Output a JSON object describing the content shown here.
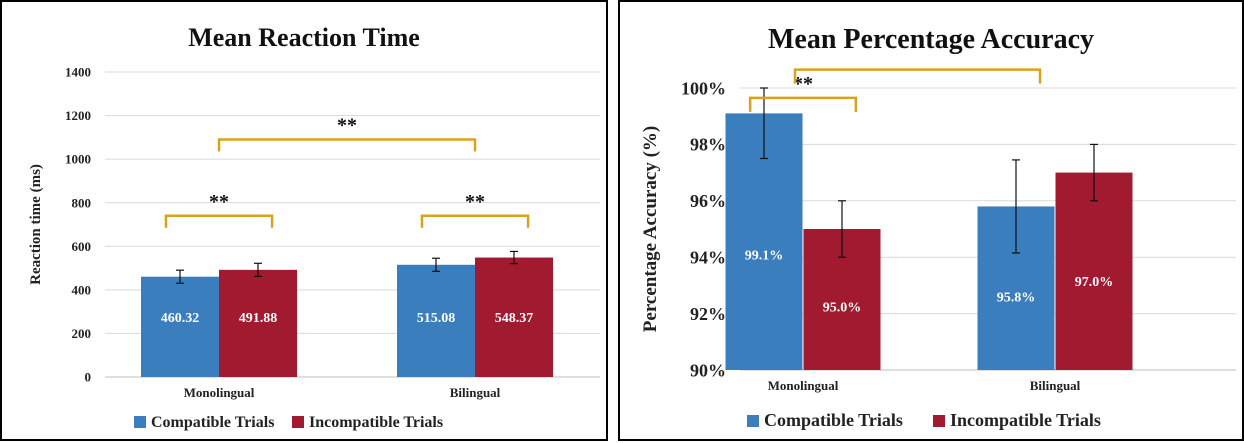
{
  "colors": {
    "compatible": "#3A7EBD",
    "incompatible": "#A11A2F",
    "bracket": "#D9A21B",
    "grid": "#D9D9D9",
    "errorbar": "#111111"
  },
  "chart_data": [
    {
      "type": "bar",
      "title": "Mean Reaction Time",
      "ylabel": "Reaction time (ms)",
      "xlabel": "",
      "categories": [
        "Monolingual",
        "Bilingual"
      ],
      "ylim": [
        0,
        1400
      ],
      "yticks": [
        0,
        200,
        400,
        600,
        800,
        1000,
        1200,
        1400
      ],
      "ytick_labels": [
        "0",
        "200",
        "400",
        "600",
        "800",
        "1000",
        "1200",
        "1400"
      ],
      "grid": true,
      "legend_position": "bottom",
      "series": [
        {
          "name": "Compatible Trials",
          "values": [
            460.32,
            515.08
          ],
          "errors": [
            30,
            30
          ],
          "labels": [
            "460.32",
            "515.08"
          ]
        },
        {
          "name": "Incompatible Trials",
          "values": [
            491.88,
            548.37
          ],
          "errors": [
            30,
            28
          ],
          "labels": [
            "491.88",
            "548.37"
          ]
        }
      ],
      "significance": [
        {
          "label": "**",
          "level": 740,
          "kind": "within",
          "category": 0
        },
        {
          "label": "**",
          "level": 740,
          "kind": "within",
          "category": 1
        },
        {
          "label": "**",
          "level": 1090,
          "kind": "between"
        }
      ]
    },
    {
      "type": "bar",
      "title": "Mean Percentage Accuracy",
      "ylabel": "Percentage Accuracy (%)",
      "xlabel": "",
      "categories": [
        "Monolingual",
        "Bilingual"
      ],
      "ylim": [
        90,
        100
      ],
      "yticks": [
        90,
        92,
        94,
        96,
        98,
        100
      ],
      "ytick_labels": [
        "90%",
        "92%",
        "94%",
        "96%",
        "98%",
        "100%"
      ],
      "grid": true,
      "legend_position": "bottom",
      "series": [
        {
          "name": "Compatible Trials",
          "values": [
            99.1,
            95.8
          ],
          "errors": [
            1.6,
            1.65
          ],
          "labels": [
            "99.1%",
            "95.8%"
          ]
        },
        {
          "name": "Incompatible Trials",
          "values": [
            95.0,
            97.0
          ],
          "errors": [
            1.0,
            1.0
          ],
          "labels": [
            "95.0%",
            "97.0%"
          ]
        }
      ],
      "significance": [
        {
          "label": "**",
          "level": 99.65,
          "kind": "within",
          "category": 0
        },
        {
          "label": "",
          "level": 100.65,
          "kind": "between"
        }
      ]
    }
  ]
}
